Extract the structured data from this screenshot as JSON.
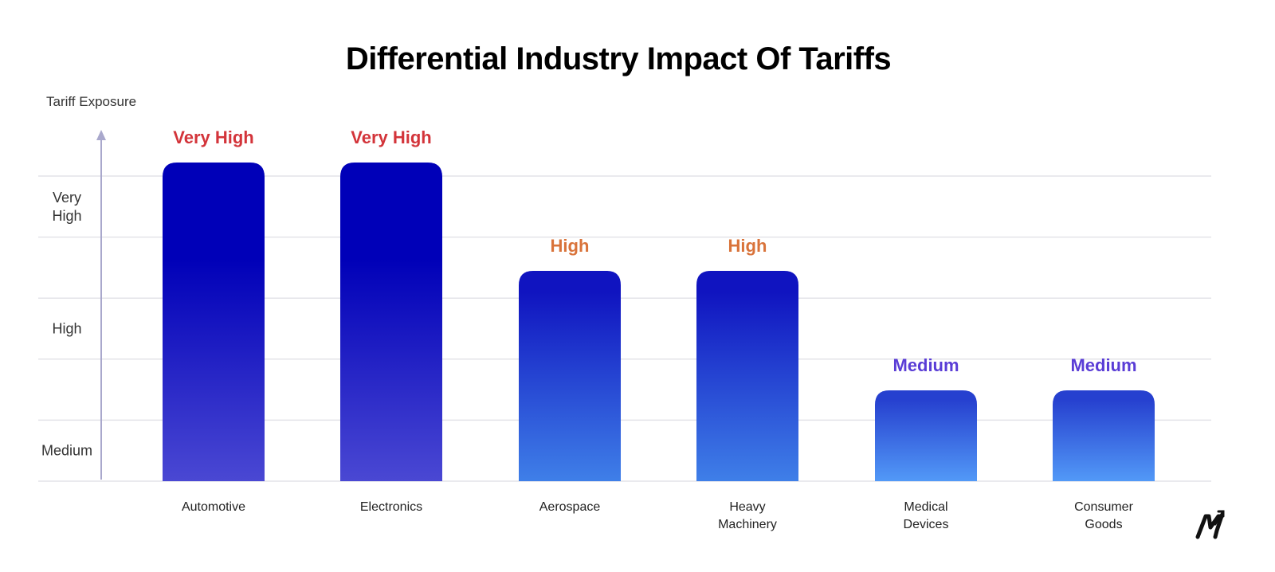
{
  "chart_data": {
    "type": "bar",
    "title": "Differential Industry Impact Of Tariffs",
    "ylabel": "Tariff Exposure",
    "xlabel": "",
    "levels": [
      "Medium",
      "High",
      "Very High"
    ],
    "y_tick_labels": [
      [
        "Medium"
      ],
      [
        "High"
      ],
      [
        "Very",
        "High"
      ]
    ],
    "categories": [
      [
        "Automotive"
      ],
      [
        "Electronics"
      ],
      [
        "Aerospace"
      ],
      [
        "Heavy",
        "Machinery"
      ],
      [
        "Medical",
        "Devices"
      ],
      [
        "Consumer",
        "Goods"
      ]
    ],
    "values": [
      "Very High",
      "Very High",
      "High",
      "High",
      "Medium",
      "Medium"
    ],
    "data_labels": [
      "Very High",
      "Very High",
      "High",
      "High",
      "Medium",
      "Medium"
    ],
    "grid": true,
    "legend": "none",
    "colors": {
      "Very High": {
        "label": "#d3343a",
        "bar_top": "#0000b8",
        "bar_bottom": "#4a48d3"
      },
      "High": {
        "label": "#d9733a",
        "bar_top": "#1014c0",
        "bar_bottom": "#3f7fe8"
      },
      "Medium": {
        "label": "#5a3dd6",
        "bar_top": "#2640cf",
        "bar_bottom": "#5299f7"
      }
    }
  },
  "logo": {
    "icon": "m-arrow-logo-icon"
  }
}
